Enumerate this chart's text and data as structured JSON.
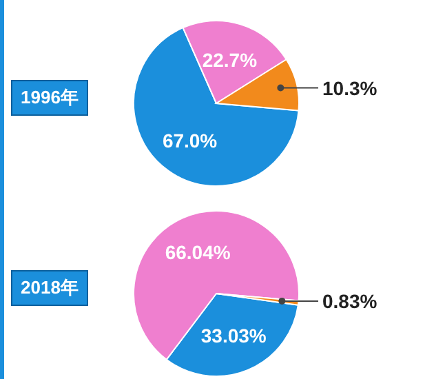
{
  "chart_data": [
    {
      "type": "pie",
      "title": "1996年",
      "categories": [
        null,
        null,
        null
      ],
      "values": [
        67.0,
        22.7,
        10.3
      ],
      "colors": [
        "#1b8fdc",
        "#ef7fcf",
        "#f28a1c"
      ],
      "value_labels": [
        "67.0%",
        "22.7%",
        "10.3%"
      ]
    },
    {
      "type": "pie",
      "title": "2018年",
      "categories": [
        null,
        null,
        null
      ],
      "values": [
        33.03,
        66.04,
        0.83
      ],
      "colors": [
        "#1b8fdc",
        "#ef7fcf",
        "#f28a1c"
      ],
      "value_labels": [
        "33.03%",
        "66.04%",
        "0.83%"
      ]
    }
  ]
}
